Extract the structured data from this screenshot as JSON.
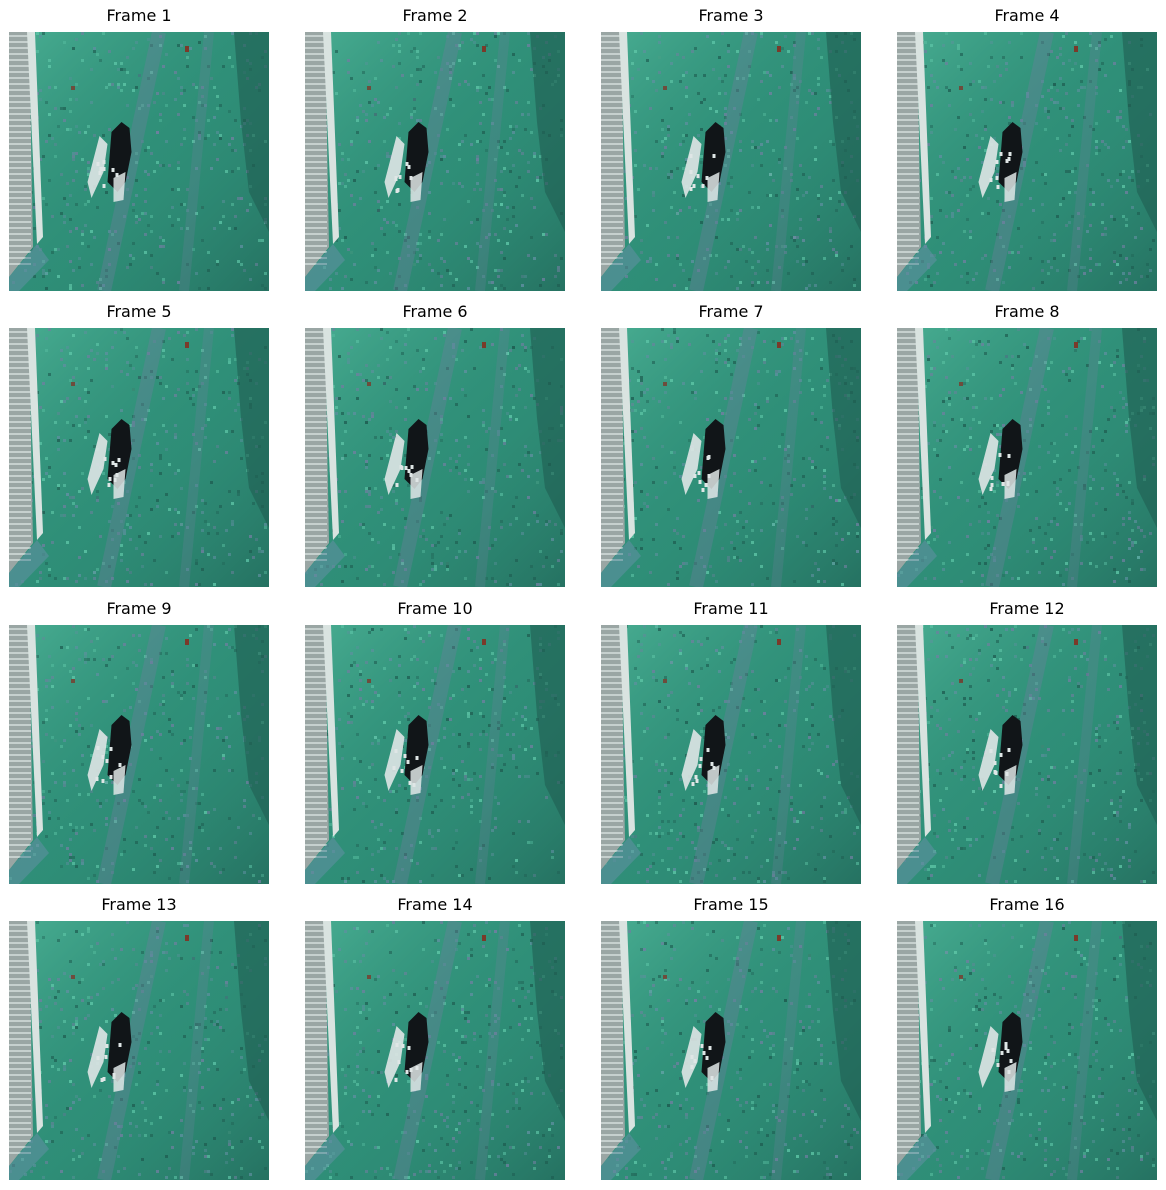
{
  "frames": [
    {
      "title": "Frame 1",
      "frame_index": 1
    },
    {
      "title": "Frame 2",
      "frame_index": 2
    },
    {
      "title": "Frame 3",
      "frame_index": 3
    },
    {
      "title": "Frame 4",
      "frame_index": 4
    },
    {
      "title": "Frame 5",
      "frame_index": 5
    },
    {
      "title": "Frame 6",
      "frame_index": 6
    },
    {
      "title": "Frame 7",
      "frame_index": 7
    },
    {
      "title": "Frame 8",
      "frame_index": 8
    },
    {
      "title": "Frame 9",
      "frame_index": 9
    },
    {
      "title": "Frame 10",
      "frame_index": 10
    },
    {
      "title": "Frame 11",
      "frame_index": 11
    },
    {
      "title": "Frame 12",
      "frame_index": 12
    },
    {
      "title": "Frame 13",
      "frame_index": 13
    },
    {
      "title": "Frame 14",
      "frame_index": 14
    },
    {
      "title": "Frame 15",
      "frame_index": 15
    },
    {
      "title": "Frame 16",
      "frame_index": 16
    }
  ],
  "colors": {
    "grass_base": "#2f8f78",
    "grass_light": "#5fc7a8",
    "grass_dark": "#1f5e52",
    "grass_purple": "#6f7fa0",
    "building_white": "#d9e3e0",
    "building_grey": "#9aa6a4",
    "path_blue": "#5f8fa0",
    "dog_black": "#111518",
    "dog_white": "#dfe6e6",
    "red_mark": "#7a3a2a"
  }
}
